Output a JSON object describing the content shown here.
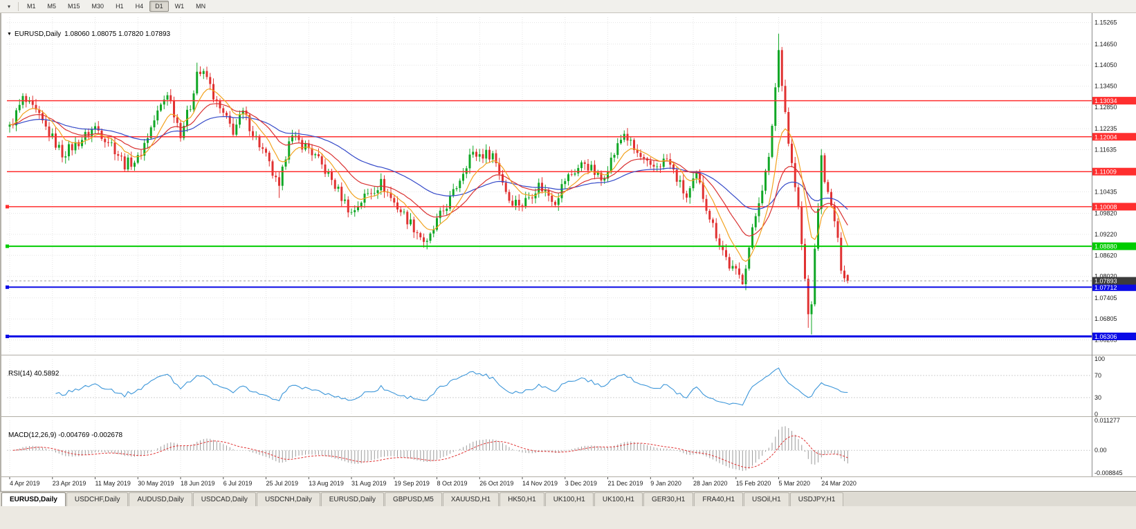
{
  "toolbar": {
    "timeframes": [
      {
        "label": "M1"
      },
      {
        "label": "M5"
      },
      {
        "label": "M15"
      },
      {
        "label": "M30"
      },
      {
        "label": "H1"
      },
      {
        "label": "H4"
      },
      {
        "label": "D1",
        "active": true
      },
      {
        "label": "W1"
      },
      {
        "label": "MN"
      }
    ]
  },
  "chart": {
    "collapse_icon": "▼",
    "title_symbol": "EURUSD,Daily",
    "title_ohlc": "1.08060 1.08075 1.07820 1.07893"
  },
  "rsi_panel": {
    "label": "RSI(14)",
    "value": "40.5892"
  },
  "macd_panel": {
    "label": "MACD(12,26,9)",
    "values": "-0.004769 -0.002678"
  },
  "tabs": {
    "active_index": 0,
    "items": [
      "EURUSD,Daily",
      "USDCHF,Daily",
      "AUDUSD,Daily",
      "USDCAD,Daily",
      "USDCNH,Daily",
      "EURUSD,Daily",
      "GBPUSD,M5",
      "XAUUSD,H1",
      "HK50,H1",
      "UK100,H1",
      "UK100,H1",
      "GER30,H1",
      "FRA40,H1",
      "USOil,H1",
      "USDJPY,H1"
    ]
  },
  "chart_data": {
    "type": "candlestick",
    "symbol": "EURUSD",
    "period": "Daily",
    "num_candles": 256,
    "last_ohlc": [
      1.0806,
      1.08075,
      1.0782,
      1.07893
    ],
    "current_price": 1.07893,
    "x_axis": {
      "candles_per_label": 13,
      "date_labels": [
        "4 Apr 2019",
        "23 Apr 2019",
        "11 May 2019",
        "30 May 2019",
        "18 Jun 2019",
        "6 Jul 2019",
        "25 Jul 2019",
        "13 Aug 2019",
        "31 Aug 2019",
        "19 Sep 2019",
        "8 Oct 2019",
        "26 Oct 2019",
        "14 Nov 2019",
        "3 Dec 2019",
        "21 Dec 2019",
        "9 Jan 2020",
        "28 Jan 2020",
        "15 Feb 2020",
        "5 Mar 2020",
        "24 Mar 2020"
      ]
    },
    "y_axis": {
      "visible_max": 1.15415,
      "visible_min": 1.05842,
      "ticks": [
        1.15265,
        1.1465,
        1.1405,
        1.1345,
        1.1285,
        1.12235,
        1.11635,
        1.10435,
        1.0982,
        1.0922,
        1.0862,
        1.0802,
        1.07405,
        1.06805,
        1.06205
      ]
    },
    "close_anchors": [
      [
        0,
        1.1225
      ],
      [
        4,
        1.1308
      ],
      [
        8,
        1.1268
      ],
      [
        13,
        1.1196
      ],
      [
        16,
        1.1152
      ],
      [
        20,
        1.1178
      ],
      [
        26,
        1.1228
      ],
      [
        31,
        1.118
      ],
      [
        35,
        1.1122
      ],
      [
        39,
        1.1136
      ],
      [
        44,
        1.1248
      ],
      [
        48,
        1.1328
      ],
      [
        52,
        1.1212
      ],
      [
        55,
        1.1288
      ],
      [
        57,
        1.1388
      ],
      [
        60,
        1.137
      ],
      [
        63,
        1.1292
      ],
      [
        68,
        1.1218
      ],
      [
        71,
        1.1268
      ],
      [
        78,
        1.1142
      ],
      [
        82,
        1.1048
      ],
      [
        85,
        1.1202
      ],
      [
        91,
        1.1168
      ],
      [
        97,
        1.1092
      ],
      [
        104,
        1.0982
      ],
      [
        108,
        1.103
      ],
      [
        113,
        1.1068
      ],
      [
        117,
        1.1012
      ],
      [
        123,
        1.0942
      ],
      [
        127,
        1.0892
      ],
      [
        130,
        1.0958
      ],
      [
        135,
        1.1038
      ],
      [
        140,
        1.1148
      ],
      [
        147,
        1.1152
      ],
      [
        152,
        1.1022
      ],
      [
        156,
        1.1008
      ],
      [
        161,
        1.1062
      ],
      [
        166,
        1.1018
      ],
      [
        169,
        1.1078
      ],
      [
        175,
        1.1128
      ],
      [
        180,
        1.1076
      ],
      [
        187,
        1.1212
      ],
      [
        190,
        1.1162
      ],
      [
        195,
        1.1108
      ],
      [
        200,
        1.1136
      ],
      [
        206,
        1.1026
      ],
      [
        209,
        1.1088
      ],
      [
        214,
        1.0946
      ],
      [
        219,
        1.0832
      ],
      [
        223,
        1.0792
      ],
      [
        228,
        1.1022
      ],
      [
        231,
        1.1132
      ],
      [
        234,
        1.1448
      ],
      [
        237,
        1.1186
      ],
      [
        240,
        1.0992
      ],
      [
        243,
        1.0692
      ],
      [
        244,
        1.0732
      ],
      [
        247,
        1.1138
      ],
      [
        249,
        1.1032
      ],
      [
        251,
        1.0962
      ],
      [
        253,
        1.0832
      ],
      [
        255,
        1.0789
      ]
    ],
    "wick_extremes": {
      "4": {
        "high": 1.1325
      },
      "57": {
        "high": 1.1412
      },
      "82": {
        "low": 1.1026
      },
      "127": {
        "low": 1.0879
      },
      "223": {
        "low": 1.0778
      },
      "234": {
        "high": 1.1495
      },
      "243": {
        "low": 1.0655
      },
      "244": {
        "low": 1.0636
      },
      "247": {
        "high": 1.1165
      }
    },
    "horizontal_lines": [
      {
        "price": 1.13034,
        "label": "1.13034",
        "color": "#FF2E2E",
        "width": 1.5,
        "handle": false
      },
      {
        "price": 1.12004,
        "label": "1.12004",
        "color": "#FF2E2E",
        "width": 1.5,
        "handle": false
      },
      {
        "price": 1.11009,
        "label": "1.11009",
        "color": "#FF2E2E",
        "width": 1.5,
        "handle": false
      },
      {
        "price": 1.10008,
        "label": "1.10008",
        "color": "#FF2E2E",
        "width": 1.5,
        "handle": true
      },
      {
        "price": 1.0888,
        "label": "1.08880",
        "color": "#00CC00",
        "width": 2,
        "handle": true
      },
      {
        "price": 1.07712,
        "label": "1.07712",
        "color": "#0A0AE6",
        "width": 2,
        "handle": true
      },
      {
        "price": 1.06306,
        "label": "1.06306",
        "color": "#0A0AE6",
        "width": 3,
        "handle": true
      }
    ],
    "moving_averages": [
      {
        "period": 50,
        "color": "#3348C8"
      },
      {
        "period": 21,
        "color": "#D93030"
      },
      {
        "period": 9,
        "color": "#F2A21E"
      }
    ],
    "indicators": {
      "rsi": {
        "period": 14,
        "current": 40.5892,
        "color": "#3C96D9",
        "axis_ticks": [
          100,
          70,
          30,
          0
        ],
        "level_lines": [
          70,
          30
        ]
      },
      "macd": {
        "fast": 12,
        "slow": 26,
        "signal": 9,
        "current_macd": -0.004769,
        "current_signal": -0.002678,
        "axis_max": 0.011277,
        "axis_min": -0.008845,
        "axis_ticks": [
          "0.011277",
          "0.00",
          "-0.008845"
        ]
      }
    },
    "colors": {
      "candle_up": "#10A726",
      "candle_down": "#E03232",
      "grid": "#E4E4E4",
      "macd_hist": "#9B9B9B",
      "macd_signal": "#E03232",
      "current_badge": "#3B3B3B"
    }
  }
}
